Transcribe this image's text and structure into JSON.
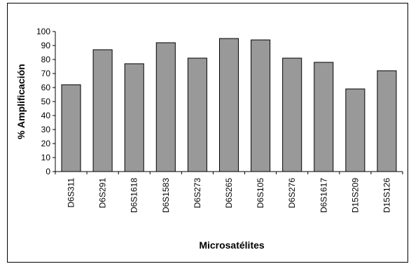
{
  "chart_data": {
    "type": "bar",
    "title": "",
    "xlabel": "Microsatélites",
    "ylabel": "% Amplificación",
    "ylim": [
      0,
      100
    ],
    "yticks": [
      0,
      10,
      20,
      30,
      40,
      50,
      60,
      70,
      80,
      90,
      100
    ],
    "grid": false,
    "legend": "none",
    "bar_color": "#999999",
    "categories": [
      "D6S311",
      "D6S291",
      "D6S1618",
      "D6S1583",
      "D6S273",
      "D6S265",
      "D6S105",
      "D6S276",
      "D6S1617",
      "D15S209",
      "D15S126"
    ],
    "values": [
      62,
      87,
      77,
      92,
      81,
      95,
      94,
      81,
      78,
      59,
      72
    ]
  }
}
